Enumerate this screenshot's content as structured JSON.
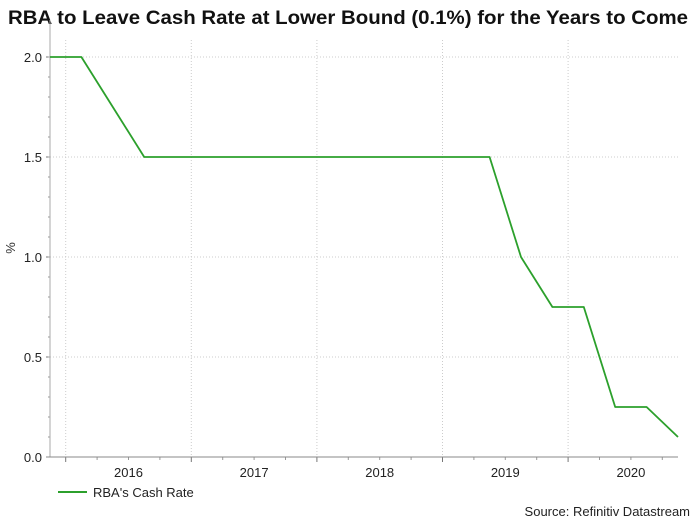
{
  "chart_data": {
    "type": "line",
    "title": "RBA to Leave Cash Rate at Lower Bound (0.1%) for the Years to Come",
    "xlabel": "",
    "ylabel": "%",
    "ylim": [
      0,
      2.0
    ],
    "xlim": [
      "2015-11",
      "2020-11"
    ],
    "yticks": [
      "0.0",
      "0.5",
      "1.0",
      "1.5",
      "2.0"
    ],
    "xticks": [
      "2016",
      "2017",
      "2018",
      "2019",
      "2020"
    ],
    "grid": true,
    "legend_position": "bottom-left",
    "series": [
      {
        "name": "RBA's Cash Rate",
        "color": "#2ca02c",
        "x": [
          "2015-11",
          "2016-02",
          "2016-05",
          "2016-08",
          "2016-11",
          "2017-02",
          "2017-05",
          "2017-08",
          "2017-11",
          "2018-02",
          "2018-05",
          "2018-08",
          "2018-11",
          "2019-02",
          "2019-05",
          "2019-08",
          "2019-11",
          "2020-02",
          "2020-05",
          "2020-08",
          "2020-11"
        ],
        "values": [
          2.0,
          2.0,
          1.75,
          1.5,
          1.5,
          1.5,
          1.5,
          1.5,
          1.5,
          1.5,
          1.5,
          1.5,
          1.5,
          1.5,
          1.5,
          1.0,
          0.75,
          0.75,
          0.25,
          0.25,
          0.1
        ]
      }
    ],
    "source": "Source: Refinitiv Datastream"
  }
}
